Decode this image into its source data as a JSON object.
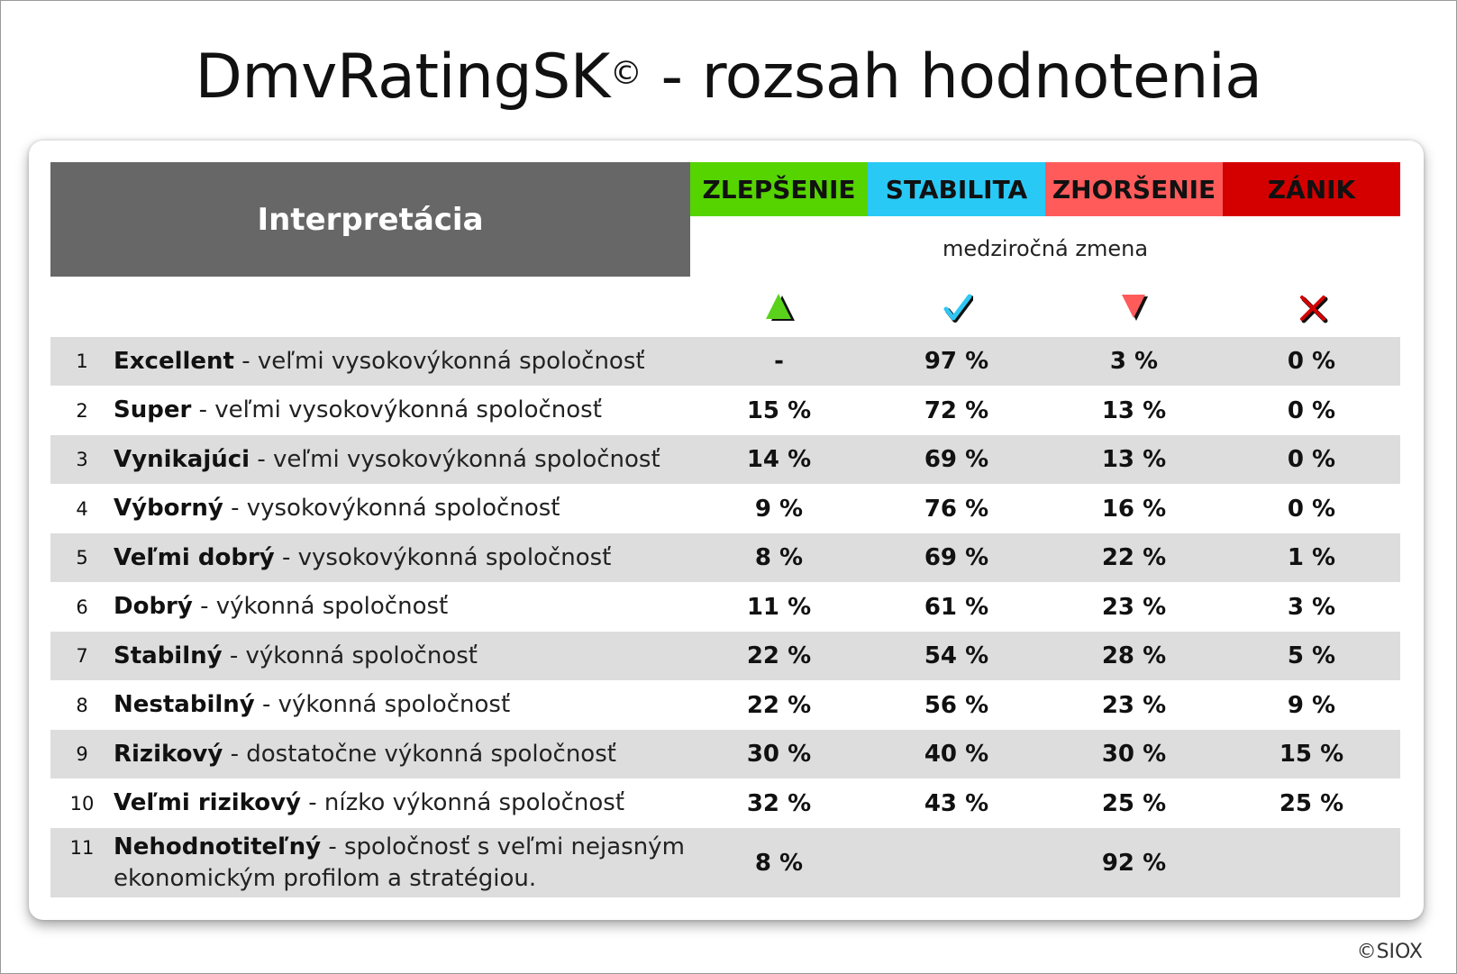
{
  "title": {
    "main": "DmvRatingSK",
    "sup": "©",
    "rest": " - rozsah hodnotenia"
  },
  "header": {
    "interpretation": "Interpretácia",
    "columns": [
      {
        "label": "ZLEPŠENIE",
        "color": "#55d400"
      },
      {
        "label": "STABILITA",
        "color": "#29c9f6"
      },
      {
        "label": "ZHORŠENIE",
        "color": "#ff5b5b"
      },
      {
        "label": "ZÁNIK",
        "color": "#d40000"
      }
    ],
    "subtitle": "medziročná zmena",
    "icons": [
      "triangle-up-icon",
      "checkmark-icon",
      "triangle-down-icon",
      "cross-icon"
    ]
  },
  "rows": [
    {
      "num": "1",
      "name": "Excellent",
      "desc": " - veľmi vysokovýkonná spoločnosť",
      "v": [
        "-",
        "97 %",
        "3 %",
        "0 %"
      ]
    },
    {
      "num": "2",
      "name": "Super",
      "desc": " - veľmi vysokovýkonná spoločnosť",
      "v": [
        "15 %",
        "72 %",
        "13 %",
        "0 %"
      ]
    },
    {
      "num": "3",
      "name": "Vynikajúci",
      "desc": " - veľmi vysokovýkonná spoločnosť",
      "v": [
        "14 %",
        "69 %",
        "13 %",
        "0 %"
      ]
    },
    {
      "num": "4",
      "name": "Výborný",
      "desc": " - vysokovýkonná spoločnosť",
      "v": [
        "9 %",
        "76 %",
        "16 %",
        "0 %"
      ]
    },
    {
      "num": "5",
      "name": "Veľmi dobrý",
      "desc": " - vysokovýkonná spoločnosť",
      "v": [
        "8 %",
        "69 %",
        "22 %",
        "1 %"
      ]
    },
    {
      "num": "6",
      "name": "Dobrý",
      "desc": " - výkonná spoločnosť",
      "v": [
        "11 %",
        "61 %",
        "23 %",
        "3 %"
      ]
    },
    {
      "num": "7",
      "name": "Stabilný",
      "desc": " - výkonná spoločnosť",
      "v": [
        "22 %",
        "54 %",
        "28 %",
        "5 %"
      ]
    },
    {
      "num": "8",
      "name": "Nestabilný",
      "desc": " - výkonná spoločnosť",
      "v": [
        "22 %",
        "56 %",
        "23 %",
        "9 %"
      ]
    },
    {
      "num": "9",
      "name": "Rizikový",
      "desc": " - dostatočne výkonná spoločnosť",
      "v": [
        "30 %",
        "40 %",
        "30 %",
        "15 %"
      ]
    },
    {
      "num": "10",
      "name": "Veľmi rizikový",
      "desc": " - nízko výkonná spoločnosť",
      "v": [
        "32 %",
        "43 %",
        "25 %",
        "25 %"
      ]
    },
    {
      "num": "11",
      "name": "Nehodnotiteľný",
      "desc": " - spoločnosť s veľmi nejasným ekonomickým profilom a stratégiou.",
      "v": [
        "8 %",
        "",
        "92 %",
        ""
      ]
    }
  ],
  "footer": {
    "copyright": "©SIOX"
  }
}
